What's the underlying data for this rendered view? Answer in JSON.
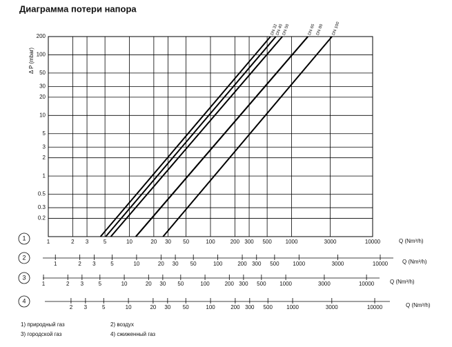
{
  "chart_data": {
    "type": "line",
    "title": "Диаграмма потери напора",
    "y_label": "Δ P (mbar)",
    "x_label": "Q (Nm³/h)",
    "log_x": true,
    "log_y": true,
    "grid": true,
    "color": "#000000",
    "xlim": [
      1,
      10000
    ],
    "xticks": [
      1,
      2,
      3,
      5,
      10,
      20,
      30,
      50,
      100,
      200,
      300,
      500,
      1000,
      3000,
      10000
    ],
    "ylim": [
      0.1,
      200
    ],
    "yticks": [
      0.2,
      0.3,
      0.5,
      1,
      2,
      3,
      5,
      10,
      20,
      30,
      50,
      100,
      200
    ],
    "series": [
      {
        "name": "DN 32",
        "x": [
          4.4,
          550
        ],
        "values": [
          0.1,
          200
        ]
      },
      {
        "name": "DN 40",
        "x": [
          5.1,
          640
        ],
        "values": [
          0.1,
          200
        ]
      },
      {
        "name": "DN 50",
        "x": [
          5.9,
          770
        ],
        "values": [
          0.1,
          200
        ]
      },
      {
        "name": "DN 65",
        "x": [
          12,
          1590
        ],
        "values": [
          0.1,
          200
        ]
      },
      {
        "name": "DN 80",
        "x": [
          12,
          1590
        ],
        "values": [
          0.1,
          200
        ]
      },
      {
        "name": "DN 100",
        "x": [
          26,
          3150
        ],
        "values": [
          0.1,
          200
        ]
      }
    ],
    "scales": [
      {
        "label": "1"
      },
      {
        "label": "2",
        "xlim": [
          0.7,
          14500
        ],
        "xticks": [
          1,
          2,
          3,
          5,
          10,
          20,
          30,
          50,
          100,
          200,
          300,
          500,
          1000,
          3000,
          10000
        ],
        "x_label": "Q (Nm³/h)"
      },
      {
        "label": "3",
        "xlim": [
          0.98,
          14500
        ],
        "xticks": [
          1,
          2,
          3,
          5,
          10,
          20,
          30,
          50,
          100,
          200,
          300,
          500,
          1000,
          3000,
          10000
        ],
        "x_label": "Q (Nm³/h)"
      },
      {
        "label": "4",
        "xlim": [
          0.96,
          15300
        ],
        "xticks": [
          2,
          3,
          5,
          10,
          20,
          30,
          50,
          100,
          200,
          300,
          500,
          1000,
          3000,
          10000
        ],
        "x_label": "Q (Nm³/h)"
      }
    ],
    "notes": [
      "1) природный газ",
      "2) воздух",
      "3) городской газ",
      "4) сжиженный газ"
    ]
  }
}
